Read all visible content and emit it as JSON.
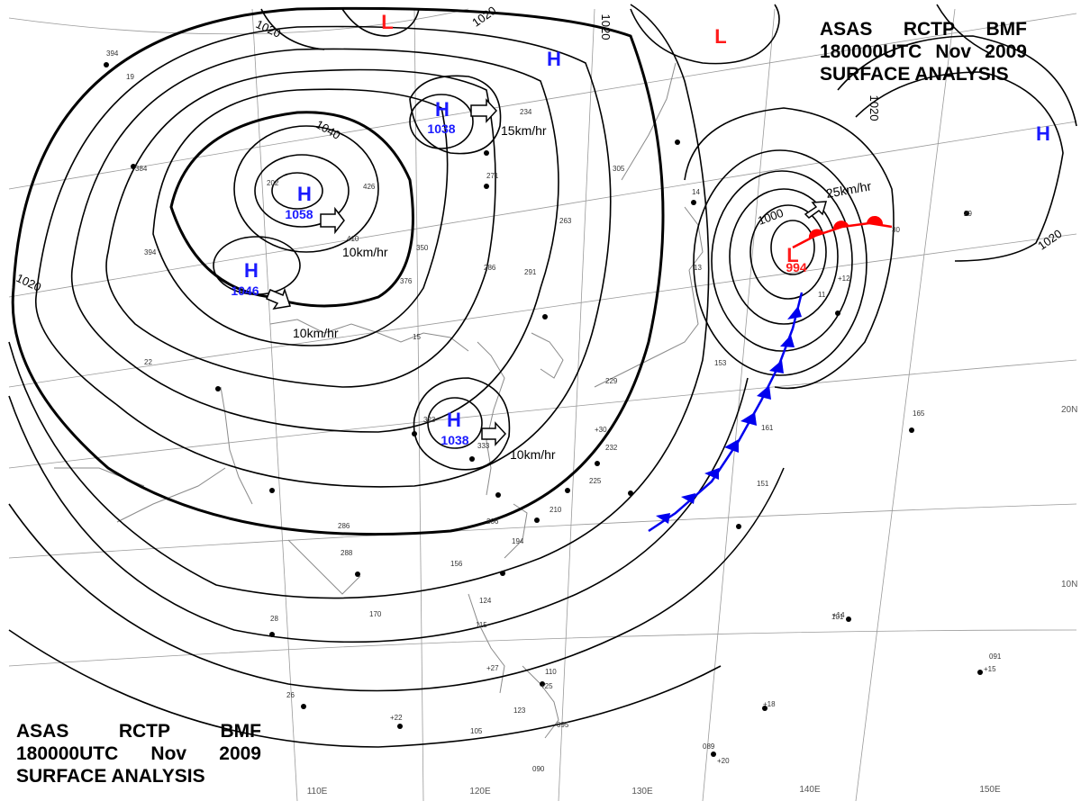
{
  "header": {
    "line1": [
      "ASAS",
      "RCTP",
      "BMF"
    ],
    "line2": [
      "180000UTC",
      "Nov",
      "2009"
    ],
    "line3": "SURFACE  ANALYSIS"
  },
  "pressure_centers": [
    {
      "symbol": "H",
      "value": "1058",
      "color": "#1a1aff"
    },
    {
      "symbol": "H",
      "value": "1046",
      "color": "#1a1aff"
    },
    {
      "symbol": "H",
      "value": "1038",
      "color": "#1a1aff"
    },
    {
      "symbol": "H",
      "value": "1038",
      "color": "#1a1aff"
    },
    {
      "symbol": "H",
      "value": "",
      "color": "#1a1aff"
    },
    {
      "symbol": "H",
      "value": "",
      "color": "#1a1aff"
    },
    {
      "symbol": "L",
      "value": "",
      "color": "#ff1a1a"
    },
    {
      "symbol": "L",
      "value": "",
      "color": "#ff1a1a"
    },
    {
      "symbol": "L",
      "value": "994",
      "color": "#ff1a1a"
    }
  ],
  "isobar_labels": [
    "1020",
    "1020",
    "1020",
    "1040",
    "1000",
    "1020",
    "1020",
    "1020"
  ],
  "movement_speeds": [
    "15km/hr",
    "10km/hr",
    "10km/hr",
    "10km/hr",
    "25km/hr"
  ],
  "longitude_labels": [
    "110E",
    "120E",
    "130E",
    "140E",
    "150E"
  ],
  "latitude_labels": [
    "20N",
    "10N"
  ],
  "station_values": [
    "394",
    "384",
    "394",
    "426",
    "410",
    "350",
    "376",
    "286",
    "291",
    "263",
    "271",
    "305",
    "234",
    "323",
    "333",
    "232",
    "225",
    "229",
    "210",
    "206",
    "194",
    "156",
    "161",
    "151",
    "165",
    "153",
    "105",
    "101",
    "091",
    "089",
    "095",
    "090",
    "170",
    "286",
    "123",
    "115",
    "124",
    "110",
    "288",
    "202",
    "14",
    "13",
    "11",
    "15",
    "19",
    "22",
    "28",
    "26",
    "29",
    "30",
    "+12",
    "+14",
    "+15",
    "+18",
    "+20",
    "+22",
    "+25",
    "+27",
    "+30"
  ],
  "colors": {
    "isobar": "#000000",
    "high": "#1a1aff",
    "low": "#ff1a1a",
    "warm_front": "#ff0000",
    "cold_front": "#0000ee",
    "geography": "#8a8a8a",
    "grid": "#9a9a9a"
  }
}
